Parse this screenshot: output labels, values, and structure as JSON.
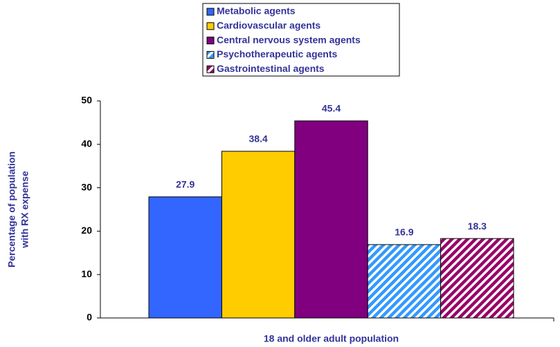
{
  "chart_data": {
    "type": "bar",
    "categories": [
      "18 and older adult population"
    ],
    "ylabel": [
      "Percentage of population",
      "with RX expense"
    ],
    "ylim": [
      0,
      50
    ],
    "yticks": [
      0,
      10,
      20,
      30,
      40,
      50
    ],
    "series": [
      {
        "name": "Metabolic agents",
        "color": "#3366ff",
        "values": [
          27.9
        ]
      },
      {
        "name": "Cardiovascular agents",
        "color": "#ffcc00",
        "values": [
          38.4
        ]
      },
      {
        "name": "Central nervous system agents",
        "color": "#800080",
        "values": [
          45.4
        ]
      },
      {
        "name": "Psychotherapeutic agents",
        "color": "#3399ff",
        "pattern": "diagonal",
        "values": [
          16.9
        ]
      },
      {
        "name": "Gastrointestinal agents",
        "color": "#990066",
        "pattern": "diagonal",
        "values": [
          18.3
        ]
      }
    ],
    "legend": "top"
  }
}
